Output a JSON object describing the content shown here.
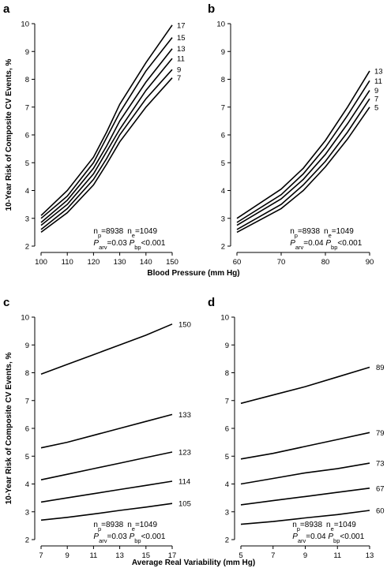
{
  "chart_data": [
    {
      "panel": "a",
      "type": "line",
      "ylabel": "10-Year Risk of Composite CV Events, %",
      "xlabel": "",
      "xlim": [
        100,
        150
      ],
      "ylim": [
        2,
        10
      ],
      "xticks": [
        100,
        110,
        120,
        130,
        140,
        150
      ],
      "yticks": [
        2,
        3,
        4,
        5,
        6,
        7,
        8,
        9,
        10
      ],
      "x": [
        100,
        110,
        120,
        125,
        130,
        140,
        150
      ],
      "series": [
        {
          "name": "17",
          "values": [
            3.1,
            4.0,
            5.2,
            6.1,
            7.1,
            8.6,
            9.95
          ]
        },
        {
          "name": "15",
          "values": [
            3.0,
            3.8,
            5.0,
            5.9,
            6.8,
            8.3,
            9.5
          ]
        },
        {
          "name": "13",
          "values": [
            2.85,
            3.65,
            4.8,
            5.6,
            6.5,
            7.9,
            9.1
          ]
        },
        {
          "name": "11",
          "values": [
            2.75,
            3.5,
            4.6,
            5.4,
            6.2,
            7.6,
            8.75
          ]
        },
        {
          "name": "9",
          "values": [
            2.6,
            3.35,
            4.4,
            5.15,
            6.0,
            7.3,
            8.35
          ]
        },
        {
          "name": "7",
          "values": [
            2.5,
            3.2,
            4.2,
            4.95,
            5.75,
            7.0,
            8.05
          ]
        }
      ],
      "stats": {
        "line1_parts": [
          "n",
          "p",
          "=8938",
          "n",
          "e",
          "=1049"
        ],
        "line2_parts": [
          "P",
          "arv",
          "=0.03 ",
          "P",
          "bp",
          "<0.001"
        ]
      }
    },
    {
      "panel": "b",
      "type": "line",
      "ylabel": "",
      "xlabel": "",
      "xlim": [
        60,
        90
      ],
      "ylim": [
        2,
        10
      ],
      "xticks": [
        60,
        70,
        80,
        90
      ],
      "yticks": [
        2,
        3,
        4,
        5,
        6,
        7,
        8,
        9,
        10
      ],
      "x": [
        60,
        70,
        75,
        80,
        85,
        90
      ],
      "series": [
        {
          "name": "13",
          "values": [
            3.0,
            4.05,
            4.8,
            5.8,
            7.0,
            8.3
          ]
        },
        {
          "name": "11",
          "values": [
            2.85,
            3.85,
            4.6,
            5.55,
            6.7,
            7.95
          ]
        },
        {
          "name": "9",
          "values": [
            2.75,
            3.7,
            4.4,
            5.3,
            6.4,
            7.6
          ]
        },
        {
          "name": "7",
          "values": [
            2.6,
            3.5,
            4.2,
            5.05,
            6.1,
            7.3
          ]
        },
        {
          "name": "5",
          "values": [
            2.5,
            3.35,
            4.0,
            4.85,
            5.85,
            7.0
          ]
        }
      ],
      "stats": {
        "line1_parts": [
          "n",
          "p",
          "=8938",
          "n",
          "e",
          "=1049"
        ],
        "line2_parts": [
          "P",
          "arv",
          "=0.04 ",
          "P",
          "bp",
          "<0.001"
        ]
      }
    },
    {
      "panel": "c",
      "type": "line",
      "ylabel": "10-Year Risk of Composite CV Events, %",
      "xlabel": "",
      "xlim": [
        7,
        17
      ],
      "ylim": [
        2,
        10
      ],
      "xticks": [
        7,
        9,
        11,
        13,
        15,
        17
      ],
      "yticks": [
        2,
        3,
        4,
        5,
        6,
        7,
        8,
        9,
        10
      ],
      "x": [
        7,
        9,
        11,
        13,
        15,
        17
      ],
      "series": [
        {
          "name": "150",
          "values": [
            7.95,
            8.3,
            8.65,
            9.0,
            9.35,
            9.75
          ]
        },
        {
          "name": "133",
          "values": [
            5.3,
            5.5,
            5.75,
            6.0,
            6.25,
            6.5
          ]
        },
        {
          "name": "123",
          "values": [
            4.15,
            4.35,
            4.55,
            4.75,
            4.95,
            5.15
          ]
        },
        {
          "name": "114",
          "values": [
            3.35,
            3.5,
            3.65,
            3.8,
            3.95,
            4.1
          ]
        },
        {
          "name": "105",
          "values": [
            2.7,
            2.8,
            2.92,
            3.05,
            3.17,
            3.3
          ]
        }
      ],
      "stats": {
        "line1_parts": [
          "n",
          "p",
          "=8938",
          "n",
          "e",
          "=1049"
        ],
        "line2_parts": [
          "P",
          "arv",
          "=0.03 ",
          "P",
          "bp",
          "<0.001"
        ]
      }
    },
    {
      "panel": "d",
      "type": "line",
      "ylabel": "",
      "xlabel": "",
      "xlim": [
        5,
        13
      ],
      "ylim": [
        2,
        10
      ],
      "xticks": [
        5,
        7,
        9,
        11,
        13
      ],
      "yticks": [
        2,
        3,
        4,
        5,
        6,
        7,
        8,
        9,
        10
      ],
      "x": [
        5,
        7,
        9,
        11,
        13
      ],
      "series": [
        {
          "name": "89",
          "values": [
            6.9,
            7.2,
            7.5,
            7.85,
            8.2
          ]
        },
        {
          "name": "79",
          "values": [
            4.9,
            5.1,
            5.35,
            5.6,
            5.85
          ]
        },
        {
          "name": "73",
          "values": [
            4.0,
            4.2,
            4.4,
            4.55,
            4.75
          ]
        },
        {
          "name": "67",
          "values": [
            3.25,
            3.4,
            3.55,
            3.7,
            3.85
          ]
        },
        {
          "name": "60",
          "values": [
            2.55,
            2.65,
            2.78,
            2.9,
            3.05
          ]
        }
      ],
      "stats": {
        "line1_parts": [
          "n",
          "p",
          "=8938",
          "n",
          "e",
          "=1049"
        ],
        "line2_parts": [
          "P",
          "arv",
          "=0.04 ",
          "P",
          "bp",
          "<0.001"
        ]
      }
    }
  ],
  "shared_xlabels": {
    "top": "Blood Pressure (mm Hg)",
    "bottom": "Average Real Variability (mm Hg)"
  }
}
